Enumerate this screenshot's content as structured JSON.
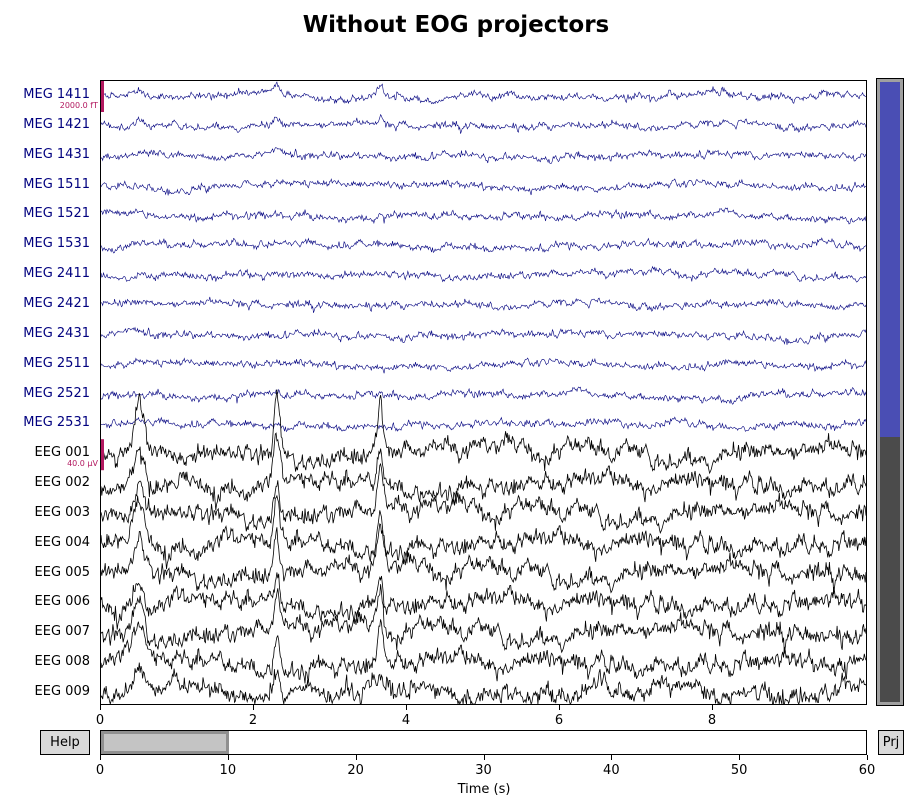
{
  "title": "Without EOG projectors",
  "channels": [
    {
      "name": "MEG 1411",
      "type": "meg"
    },
    {
      "name": "MEG 1421",
      "type": "meg"
    },
    {
      "name": "MEG 1431",
      "type": "meg"
    },
    {
      "name": "MEG 1511",
      "type": "meg"
    },
    {
      "name": "MEG 1521",
      "type": "meg"
    },
    {
      "name": "MEG 1531",
      "type": "meg"
    },
    {
      "name": "MEG 2411",
      "type": "meg"
    },
    {
      "name": "MEG 2421",
      "type": "meg"
    },
    {
      "name": "MEG 2431",
      "type": "meg"
    },
    {
      "name": "MEG 2511",
      "type": "meg"
    },
    {
      "name": "MEG 2521",
      "type": "meg"
    },
    {
      "name": "MEG 2531",
      "type": "meg"
    },
    {
      "name": "EEG 001",
      "type": "eeg"
    },
    {
      "name": "EEG 002",
      "type": "eeg"
    },
    {
      "name": "EEG 003",
      "type": "eeg"
    },
    {
      "name": "EEG 004",
      "type": "eeg"
    },
    {
      "name": "EEG 005",
      "type": "eeg"
    },
    {
      "name": "EEG 006",
      "type": "eeg"
    },
    {
      "name": "EEG 007",
      "type": "eeg"
    },
    {
      "name": "EEG 008",
      "type": "eeg"
    },
    {
      "name": "EEG 009",
      "type": "eeg"
    }
  ],
  "scale_bars": {
    "meg": "2000.0 fT",
    "eeg": "40.0 µV"
  },
  "time_axis": {
    "range": [
      0,
      10
    ],
    "ticks": [
      "0",
      "2",
      "4",
      "6",
      "8"
    ]
  },
  "eog_peaks_s": [
    0.5,
    2.3,
    3.65
  ],
  "overview": {
    "ticks": [
      "0",
      "10",
      "20",
      "30",
      "40",
      "50",
      "60"
    ],
    "range": [
      0,
      60
    ],
    "window": [
      0,
      10
    ],
    "xlabel": "Time (s)"
  },
  "buttons": {
    "help": "Help",
    "proj": "Prj"
  },
  "colors": {
    "meg": "#00007f",
    "eeg": "#000000",
    "scale": "#b2185f",
    "meg_scroll": "#4a4eb4",
    "eeg_scroll": "#4b4b4b"
  }
}
